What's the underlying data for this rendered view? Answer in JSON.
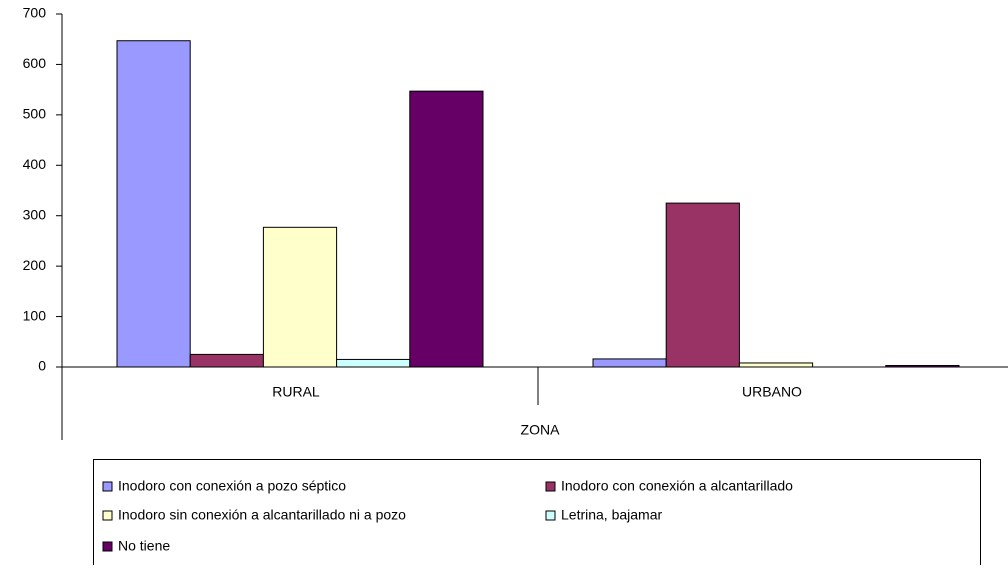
{
  "chart_data": {
    "type": "bar",
    "x_label": "ZONA",
    "categories": [
      "RURAL",
      "URBANO"
    ],
    "series": [
      {
        "name": "Inodoro con conexión a pozo séptico",
        "color": "#9999ff",
        "values": [
          647,
          16
        ]
      },
      {
        "name": "Inodoro con conexión a alcantarillado",
        "color": "#993366",
        "values": [
          25,
          325
        ]
      },
      {
        "name": "Inodoro sin conexión a alcantarillado ni a pozo",
        "color": "#ffffcc",
        "values": [
          277,
          8
        ]
      },
      {
        "name": "Letrina, bajamar",
        "color": "#ccffff",
        "values": [
          15,
          0
        ]
      },
      {
        "name": "No tiene",
        "color": "#660066",
        "values": [
          547,
          3
        ]
      }
    ],
    "ylim": [
      0,
      700
    ],
    "yticks": [
      0,
      100,
      200,
      300,
      400,
      500,
      600,
      700
    ],
    "legend": "bottom"
  }
}
